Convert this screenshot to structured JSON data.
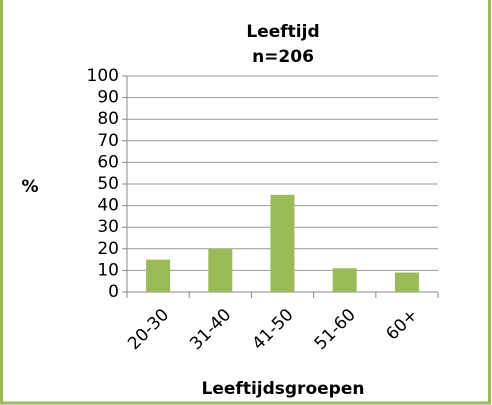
{
  "chart_data": {
    "type": "bar",
    "title": "Leeftijd",
    "subtitle": "n=206",
    "y_label": "%",
    "x_label": "Leeftijdsgroepen",
    "categories": [
      "20-30",
      "31-40",
      "41-50",
      "51-60",
      "60+"
    ],
    "values": [
      15,
      20,
      45,
      11,
      9
    ],
    "color": "#9bbb59",
    "ylim": [
      0,
      100
    ],
    "yticks": [
      0,
      10,
      20,
      30,
      40,
      50,
      60,
      70,
      80,
      90,
      100
    ],
    "grid": true
  }
}
